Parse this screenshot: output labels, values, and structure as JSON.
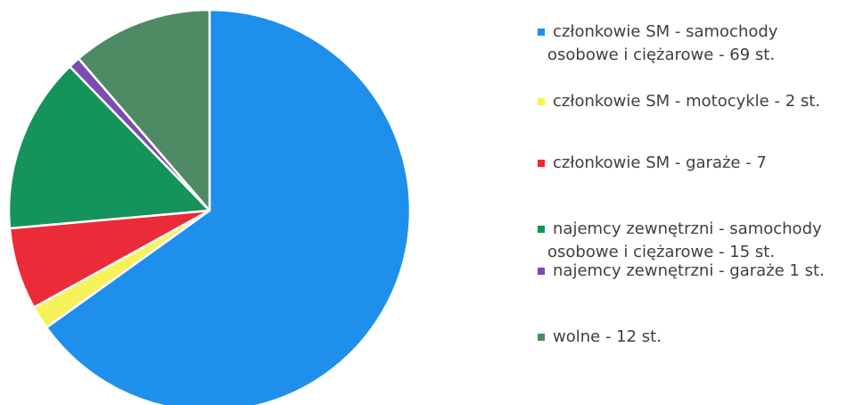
{
  "chart_data": {
    "type": "pie",
    "title": "",
    "start_angle_deg": 0,
    "direction": "clockwise",
    "slices": [
      {
        "label_lines": [
          "członkowie SM - samochody",
          "osobowe i ciężarowe - 69 st."
        ],
        "value": 69,
        "color": "#1e90ec"
      },
      {
        "label_lines": [
          "członkowie SM - motocykle - 2 st."
        ],
        "value": 2,
        "color": "#f7f25a"
      },
      {
        "label_lines": [
          "członkowie SM - garaże - 7"
        ],
        "value": 7,
        "color": "#ec2b39"
      },
      {
        "label_lines": [
          "najemcy zewnętrzni - samochody",
          "osobowe i ciężarowe - 15 st."
        ],
        "value": 15,
        "color": "#14935a"
      },
      {
        "label_lines": [
          "najemcy zewnętrzni - garaże 1 st."
        ],
        "value": 1,
        "color": "#7a4bb0"
      },
      {
        "label_lines": [
          "wolne - 12 st."
        ],
        "value": 12,
        "color": "#4e8a64"
      }
    ],
    "legend_position": "right"
  }
}
